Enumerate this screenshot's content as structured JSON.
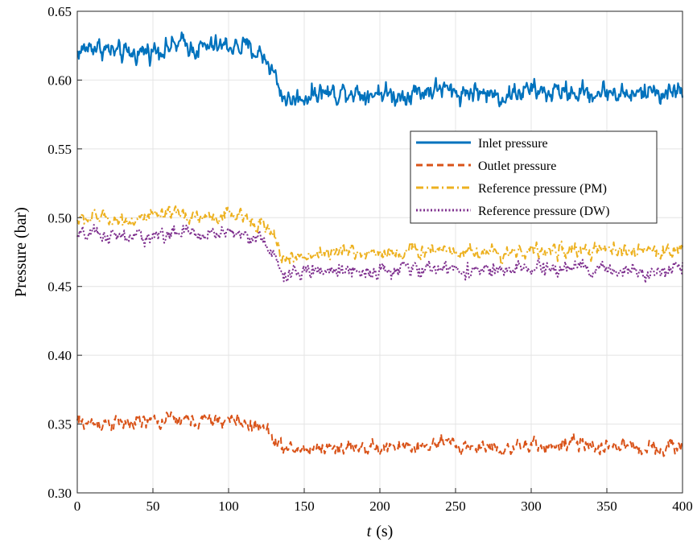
{
  "chart_data": {
    "type": "line",
    "title": "",
    "xlabel_var": "t",
    "xlabel_unit": "(s)",
    "ylabel": "Pressure (bar)",
    "xlim": [
      0,
      400
    ],
    "ylim": [
      0.3,
      0.65
    ],
    "xticks": [
      0,
      50,
      100,
      150,
      200,
      250,
      300,
      350,
      400
    ],
    "xtick_labels": [
      "0",
      "50",
      "100",
      "150",
      "200",
      "250",
      "300",
      "350",
      "400"
    ],
    "yticks": [
      0.3,
      0.35,
      0.4,
      0.45,
      0.5,
      0.55,
      0.6,
      0.65
    ],
    "ytick_labels": [
      "0.30",
      "0.35",
      "0.40",
      "0.45",
      "0.50",
      "0.55",
      "0.60",
      "0.65"
    ],
    "grid": true,
    "legend_position": "right, upper-middle",
    "x": [
      0,
      10,
      20,
      30,
      40,
      50,
      60,
      70,
      80,
      90,
      100,
      110,
      120,
      125,
      130,
      135,
      140,
      150,
      160,
      170,
      180,
      190,
      200,
      210,
      220,
      230,
      240,
      250,
      260,
      270,
      280,
      290,
      300,
      310,
      320,
      330,
      340,
      350,
      360,
      370,
      380,
      390,
      400
    ],
    "series": [
      {
        "name": "Inlet pressure",
        "color": "#0072BD",
        "dash": "solid",
        "noise": 0.007,
        "values": [
          0.62,
          0.625,
          0.622,
          0.618,
          0.62,
          0.622,
          0.624,
          0.626,
          0.623,
          0.624,
          0.625,
          0.624,
          0.62,
          0.615,
          0.605,
          0.59,
          0.585,
          0.588,
          0.592,
          0.59,
          0.593,
          0.59,
          0.592,
          0.588,
          0.591,
          0.592,
          0.594,
          0.59,
          0.592,
          0.59,
          0.588,
          0.591,
          0.593,
          0.59,
          0.592,
          0.591,
          0.59,
          0.592,
          0.59,
          0.589,
          0.593,
          0.59,
          0.594
        ]
      },
      {
        "name": "Outlet pressure",
        "color": "#D95319",
        "dash": "dashed",
        "noise": 0.005,
        "values": [
          0.352,
          0.35,
          0.352,
          0.35,
          0.351,
          0.352,
          0.353,
          0.353,
          0.352,
          0.352,
          0.353,
          0.351,
          0.348,
          0.345,
          0.34,
          0.333,
          0.331,
          0.332,
          0.333,
          0.332,
          0.334,
          0.333,
          0.332,
          0.333,
          0.334,
          0.333,
          0.336,
          0.334,
          0.333,
          0.334,
          0.333,
          0.332,
          0.334,
          0.335,
          0.334,
          0.336,
          0.333,
          0.334,
          0.335,
          0.332,
          0.334,
          0.333,
          0.334
        ]
      },
      {
        "name": "Reference pressure (PM)",
        "color": "#EDB120",
        "dash": "dashdot",
        "noise": 0.005,
        "values": [
          0.498,
          0.5,
          0.5,
          0.498,
          0.499,
          0.5,
          0.501,
          0.502,
          0.501,
          0.5,
          0.502,
          0.5,
          0.497,
          0.492,
          0.485,
          0.472,
          0.47,
          0.472,
          0.475,
          0.474,
          0.476,
          0.474,
          0.475,
          0.474,
          0.476,
          0.476,
          0.478,
          0.476,
          0.476,
          0.475,
          0.474,
          0.476,
          0.476,
          0.475,
          0.476,
          0.477,
          0.475,
          0.476,
          0.476,
          0.474,
          0.477,
          0.475,
          0.477
        ]
      },
      {
        "name": "Reference pressure (DW)",
        "color": "#7E2F8E",
        "dash": "dotted",
        "noise": 0.005,
        "values": [
          0.486,
          0.488,
          0.487,
          0.485,
          0.486,
          0.487,
          0.488,
          0.489,
          0.488,
          0.488,
          0.49,
          0.488,
          0.485,
          0.48,
          0.472,
          0.46,
          0.458,
          0.46,
          0.462,
          0.461,
          0.463,
          0.461,
          0.462,
          0.461,
          0.463,
          0.462,
          0.464,
          0.462,
          0.462,
          0.462,
          0.46,
          0.462,
          0.463,
          0.462,
          0.463,
          0.464,
          0.461,
          0.463,
          0.462,
          0.46,
          0.463,
          0.461,
          0.465
        ]
      }
    ]
  }
}
